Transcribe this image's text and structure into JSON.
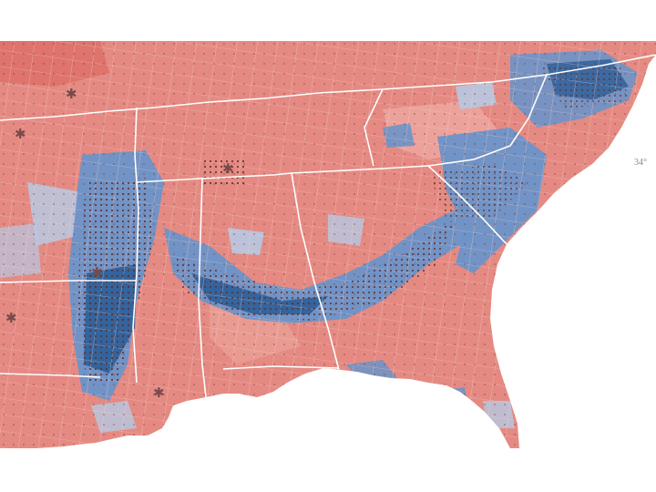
{
  "map": {
    "latitude_label": "34°",
    "legend_colors": {
      "strong_republican": "#d9655d",
      "republican": "#e58a82",
      "lean_republican": "#f0b3ab",
      "lean_democrat": "#b7c8e2",
      "democrat": "#6b93c8",
      "strong_democrat": "#2e5f98",
      "dark_democrat": "#1f3f68"
    },
    "overlay": {
      "dot_color": "#6a3a3a",
      "dense_marker_color": "#7a4a4a"
    },
    "ocean_color": "#ffffff"
  }
}
